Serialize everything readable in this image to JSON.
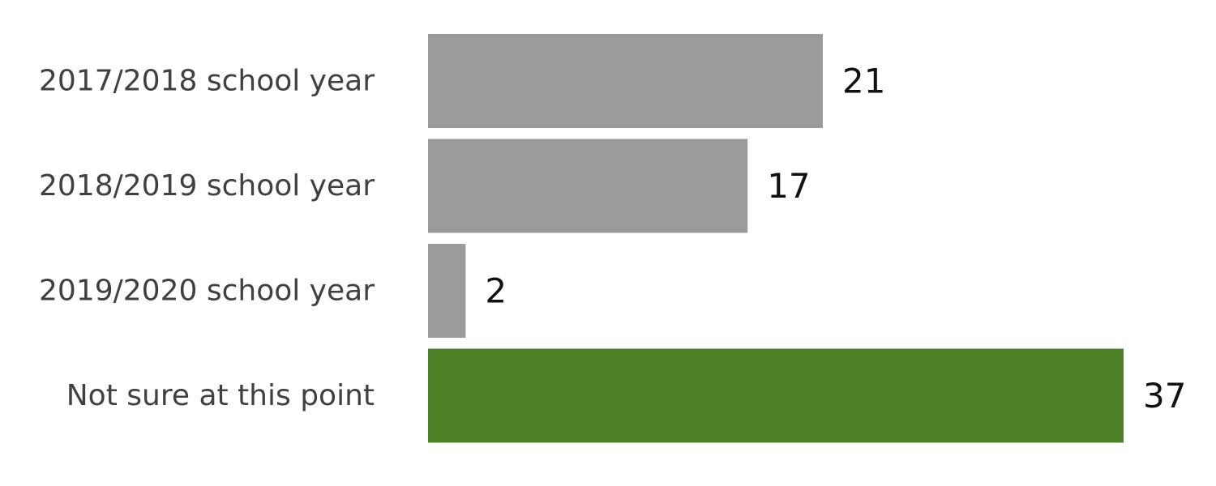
{
  "chart_data": {
    "type": "bar",
    "orientation": "horizontal",
    "categories": [
      "2017/2018 school year",
      "2018/2019 school year",
      "2019/2020 school year",
      "Not sure at this point"
    ],
    "values": [
      21,
      17,
      2,
      37
    ],
    "bar_colors": [
      "#9b9b9b",
      "#9b9b9b",
      "#9b9b9b",
      "#4c8128"
    ],
    "title": "",
    "xlabel": "",
    "ylabel": "",
    "xlim": [
      0,
      37
    ],
    "grid": false,
    "legend": "none"
  }
}
